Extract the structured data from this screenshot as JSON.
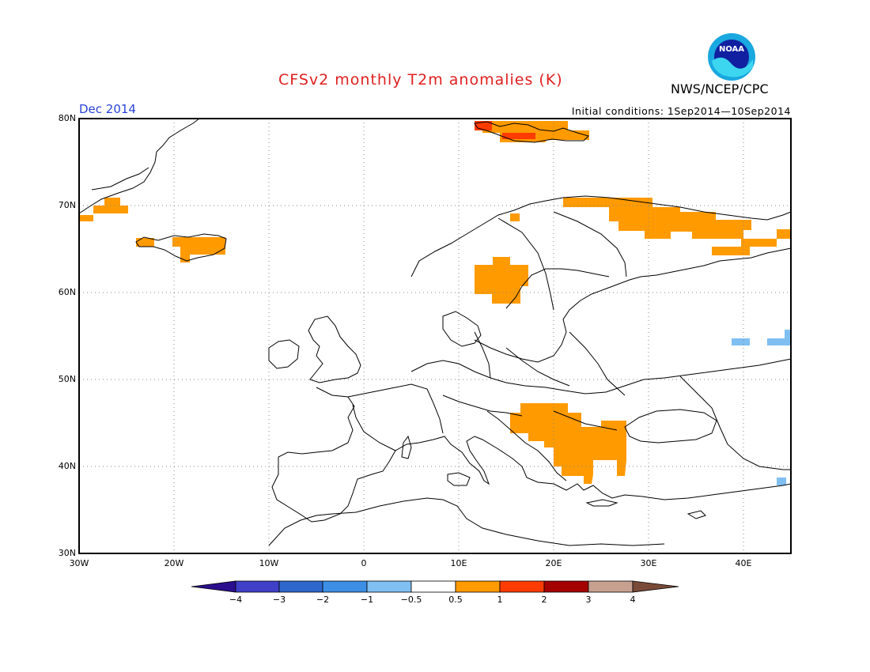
{
  "title": "CFSv2 monthly T2m anomalies (K)",
  "org": "NWS/NCEP/CPC",
  "logo_text": "NOAA",
  "month": "Dec 2014",
  "initial_conditions": "Initial conditions: 1Sep2014—10Sep2014",
  "lat_labels": [
    "80N",
    "70N",
    "60N",
    "50N",
    "40N",
    "30N"
  ],
  "lon_labels": [
    "30W",
    "20W",
    "10W",
    "0",
    "10E",
    "20E",
    "30E",
    "40E"
  ],
  "colorbar": {
    "labels": [
      "−4",
      "−3",
      "−2",
      "−1",
      "−0.5",
      "0.5",
      "1",
      "2",
      "3",
      "4"
    ],
    "colors": [
      "#2a0e8e",
      "#3f3fc8",
      "#2f68cc",
      "#3d8fe6",
      "#80bff2",
      "#ffffff",
      "#ff9a00",
      "#ff3c00",
      "#a50000",
      "#c8a090",
      "#7a4a38"
    ]
  },
  "anomaly_regions": [
    {
      "name": "Svalbard",
      "level": "1-2",
      "color": "#ff3c00"
    },
    {
      "name": "Svalbard",
      "level": "0.5-1",
      "color": "#ff9a00"
    },
    {
      "name": "Northern Scandinavia / Kola",
      "level": "0.5-1",
      "color": "#ff9a00"
    },
    {
      "name": "Sweden",
      "level": "0.5-1",
      "color": "#ff9a00"
    },
    {
      "name": "Iceland",
      "level": "0.5-1",
      "color": "#ff9a00"
    },
    {
      "name": "Greenland east coast",
      "level": "0.5-1",
      "color": "#ff9a00"
    },
    {
      "name": "Balkans",
      "level": "0.5-1",
      "color": "#ff9a00"
    },
    {
      "name": "Southern Russia",
      "level": "-1 to -0.5",
      "color": "#80bff2"
    }
  ]
}
